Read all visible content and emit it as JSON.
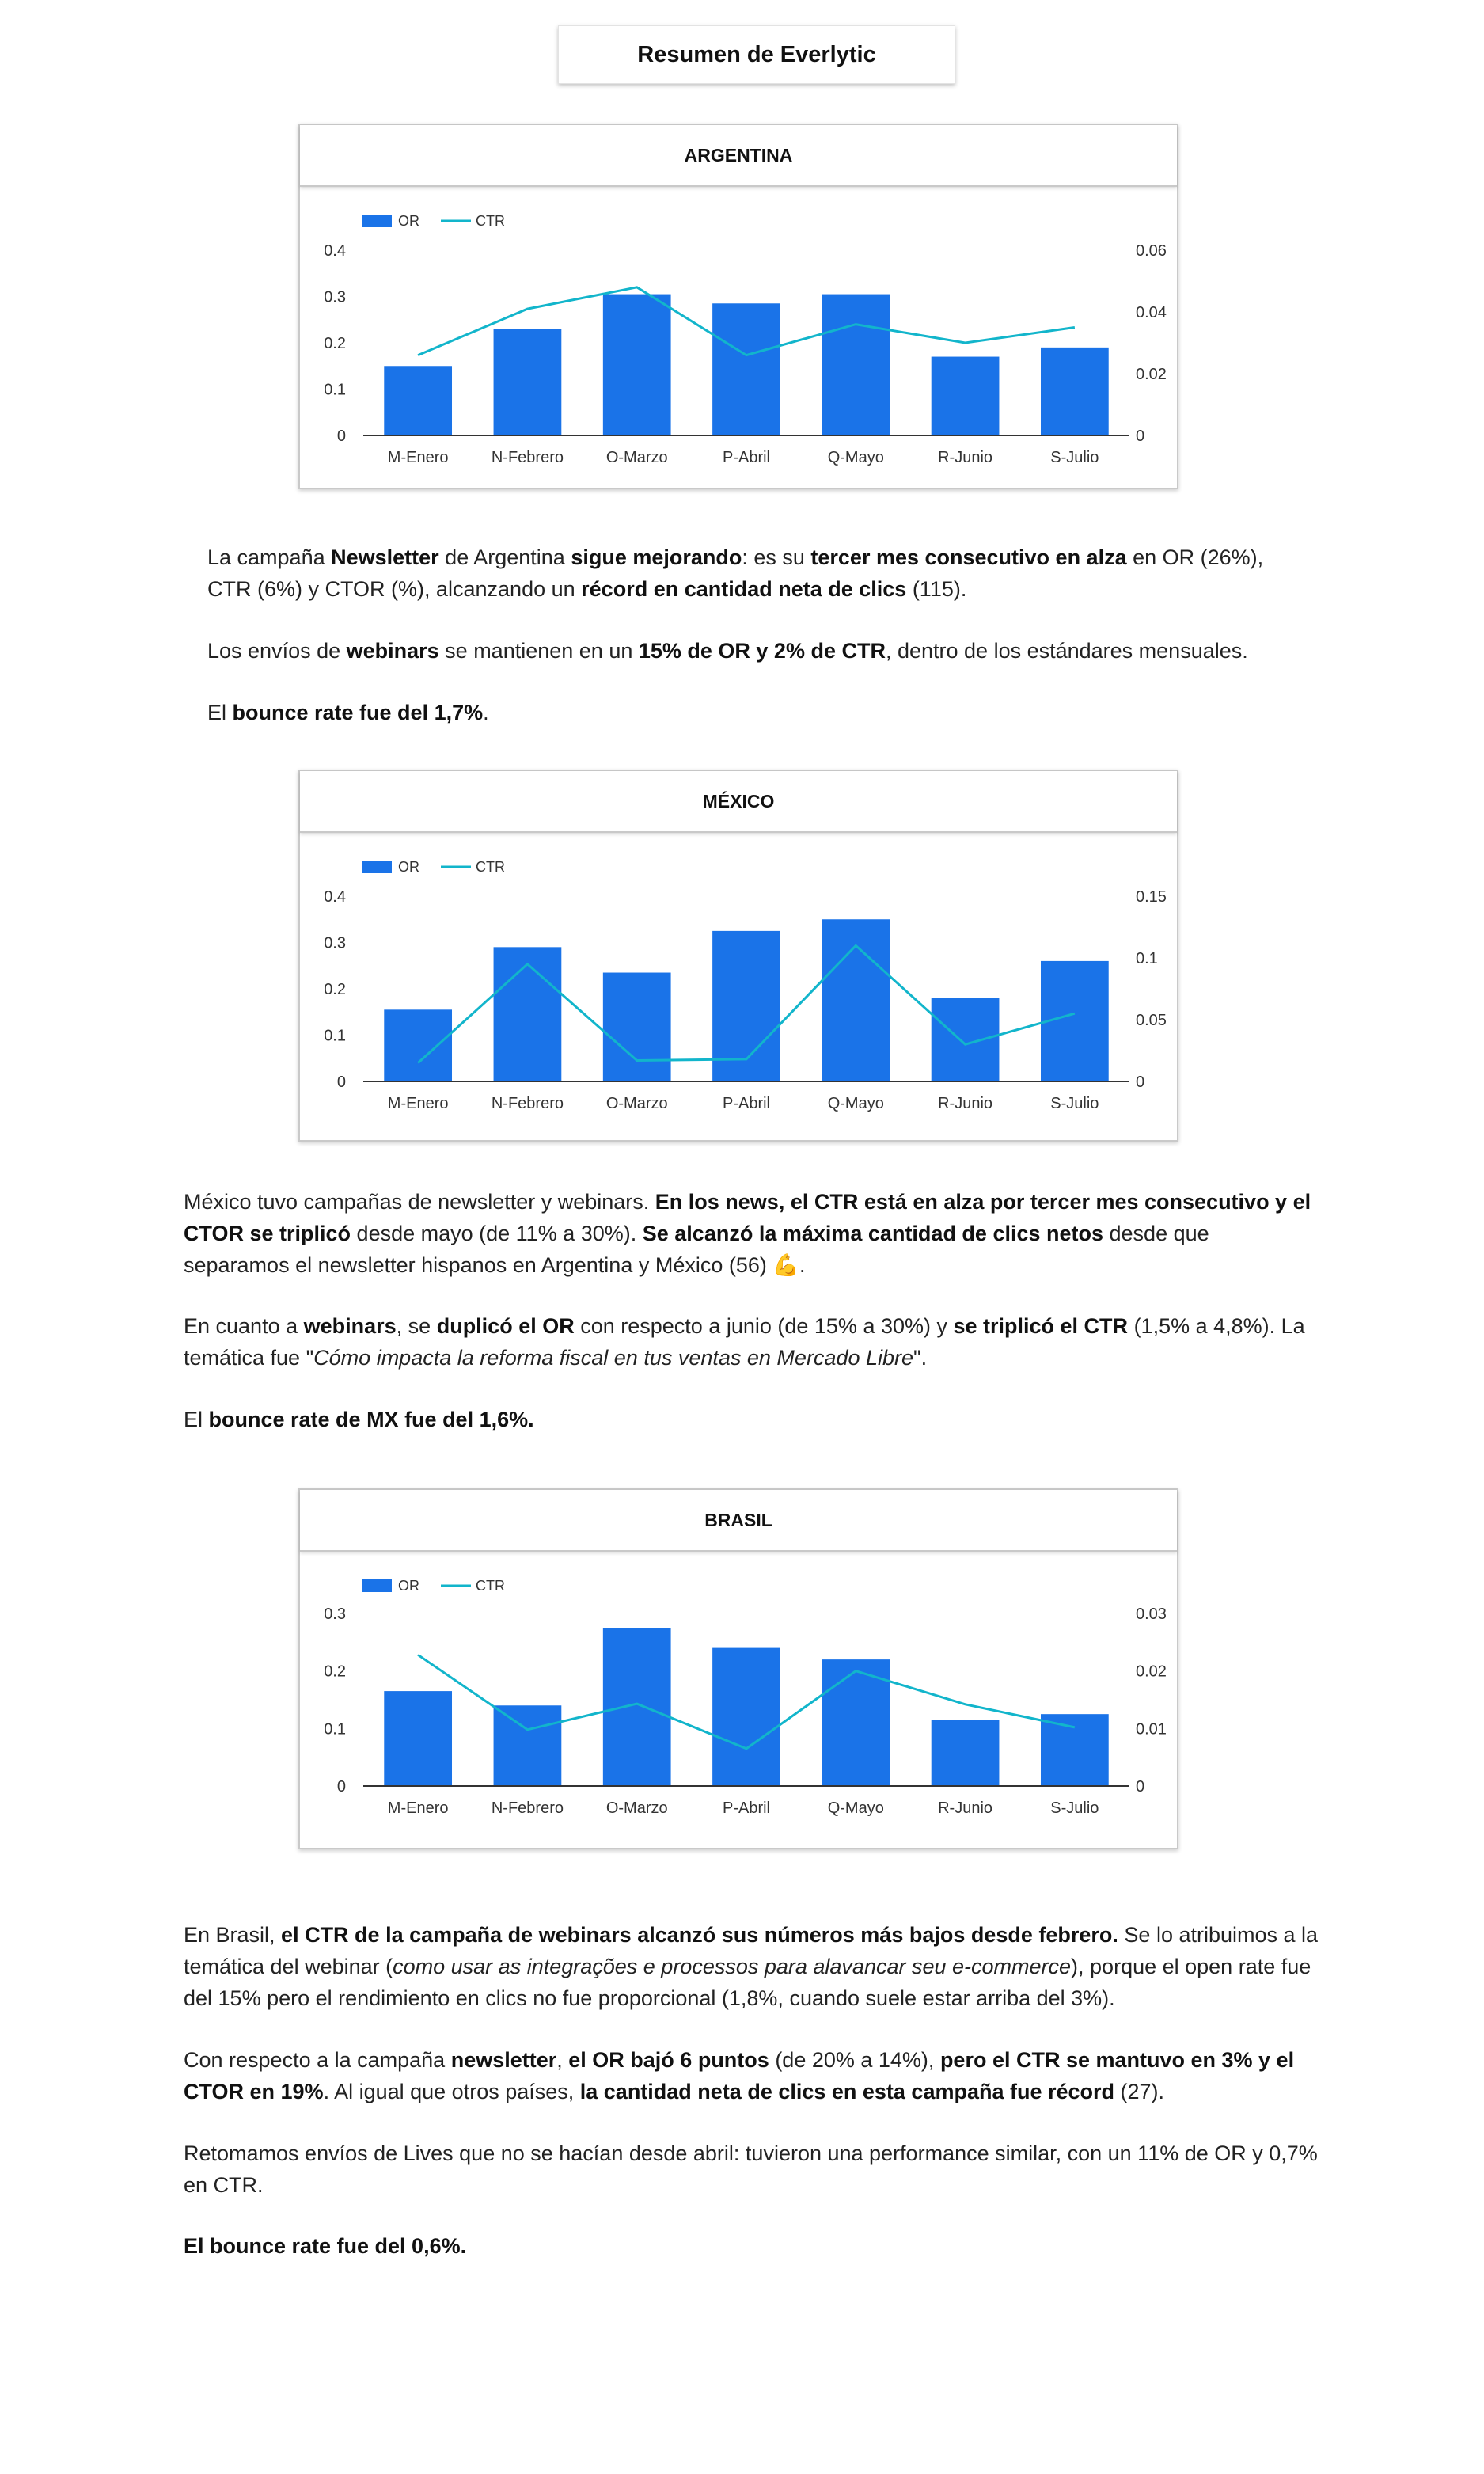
{
  "page_title": "Resumen de Everlytic",
  "charts": [
    {
      "heading": "ARGENTINA",
      "legend": {
        "bar": "OR",
        "line": "CTR"
      },
      "categories": [
        "M-Enero",
        "N-Febrero",
        "O-Marzo",
        "P-Abril",
        "Q-Mayo",
        "R-Junio",
        "S-Julio"
      ],
      "left_ticks": [
        "0",
        "0.1",
        "0.2",
        "0.3",
        "0.4"
      ],
      "right_ticks": [
        "0",
        "0.02",
        "0.04",
        "0.06"
      ]
    },
    {
      "heading": "MÉXICO",
      "legend": {
        "bar": "OR",
        "line": "CTR"
      },
      "categories": [
        "M-Enero",
        "N-Febrero",
        "O-Marzo",
        "P-Abril",
        "Q-Mayo",
        "R-Junio",
        "S-Julio"
      ],
      "left_ticks": [
        "0",
        "0.1",
        "0.2",
        "0.3",
        "0.4"
      ],
      "right_ticks": [
        "0",
        "0.05",
        "0.1",
        "0.15"
      ]
    },
    {
      "heading": "BRASIL",
      "legend": {
        "bar": "OR",
        "line": "CTR"
      },
      "categories": [
        "M-Enero",
        "N-Febrero",
        "O-Marzo",
        "P-Abril",
        "Q-Mayo",
        "R-Junio",
        "S-Julio"
      ],
      "left_ticks": [
        "0",
        "0.1",
        "0.2",
        "0.3"
      ],
      "right_ticks": [
        "0",
        "0.01",
        "0.02",
        "0.03"
      ]
    }
  ],
  "chart_data": [
    {
      "type": "bar",
      "title": "ARGENTINA",
      "categories": [
        "M-Enero",
        "N-Febrero",
        "O-Marzo",
        "P-Abril",
        "Q-Mayo",
        "R-Junio",
        "S-Julio"
      ],
      "series": [
        {
          "name": "OR",
          "axis": "left",
          "type": "bar",
          "values": [
            0.15,
            0.23,
            0.305,
            0.285,
            0.305,
            0.17,
            0.19
          ]
        },
        {
          "name": "CTR",
          "axis": "right",
          "type": "line",
          "values": [
            0.026,
            0.041,
            0.048,
            0.026,
            0.036,
            0.03,
            0.035
          ]
        }
      ],
      "ylim": [
        0,
        0.4
      ],
      "y2lim": [
        0,
        0.06
      ],
      "legend": "top-left",
      "grid": false
    },
    {
      "type": "bar",
      "title": "MÉXICO",
      "categories": [
        "M-Enero",
        "N-Febrero",
        "O-Marzo",
        "P-Abril",
        "Q-Mayo",
        "R-Junio",
        "S-Julio"
      ],
      "series": [
        {
          "name": "OR",
          "axis": "left",
          "type": "bar",
          "values": [
            0.155,
            0.29,
            0.235,
            0.325,
            0.35,
            0.18,
            0.26
          ]
        },
        {
          "name": "CTR",
          "axis": "right",
          "type": "line",
          "values": [
            0.015,
            0.095,
            0.017,
            0.018,
            0.11,
            0.03,
            0.055
          ]
        }
      ],
      "ylim": [
        0,
        0.4
      ],
      "y2lim": [
        0,
        0.15
      ],
      "legend": "top-left",
      "grid": false
    },
    {
      "type": "bar",
      "title": "BRASIL",
      "categories": [
        "M-Enero",
        "N-Febrero",
        "O-Marzo",
        "P-Abril",
        "Q-Mayo",
        "R-Junio",
        "S-Julio"
      ],
      "series": [
        {
          "name": "OR",
          "axis": "left",
          "type": "bar",
          "values": [
            0.165,
            0.14,
            0.275,
            0.24,
            0.22,
            0.115,
            0.125
          ]
        },
        {
          "name": "CTR",
          "axis": "right",
          "type": "line",
          "values": [
            0.0228,
            0.0098,
            0.0143,
            0.0065,
            0.02,
            0.0142,
            0.0102
          ]
        }
      ],
      "ylim": [
        0,
        0.3
      ],
      "y2lim": [
        0,
        0.03
      ],
      "legend": "top-left",
      "grid": false
    }
  ],
  "colors": {
    "bar": "#1a73e8",
    "line": "#12b5cb",
    "axis": "#333333"
  },
  "paragraphs": [
    [
      {
        "t": "La campaña "
      },
      {
        "t": "Newsletter",
        "b": true
      },
      {
        "t": " de Argentina "
      },
      {
        "t": "sigue mejorando",
        "b": true
      },
      {
        "t": ": es su "
      },
      {
        "t": "tercer mes consecutivo en alza",
        "b": true
      },
      {
        "t": " en OR (26%), CTR (6%) y CTOR (%), alcanzando un "
      },
      {
        "t": "récord en cantidad neta de clics",
        "b": true
      },
      {
        "t": " (115)."
      }
    ],
    [
      {
        "t": "Los envíos de "
      },
      {
        "t": "webinars",
        "b": true
      },
      {
        "t": " se mantienen en un "
      },
      {
        "t": "15% de OR y 2% de CTR",
        "b": true
      },
      {
        "t": ", dentro de los estándares mensuales."
      }
    ],
    [
      {
        "t": "El "
      },
      {
        "t": "bounce rate fue del 1,7%",
        "b": true
      },
      {
        "t": "."
      }
    ],
    [
      {
        "t": "México tuvo campañas de newsletter y webinars. "
      },
      {
        "t": "En los news, el CTR está en alza por tercer mes consecutivo y el CTOR se triplicó",
        "b": true
      },
      {
        "t": " desde mayo (de 11% a 30%). "
      },
      {
        "t": "Se alcanzó la máxima cantidad de clics netos",
        "b": true
      },
      {
        "t": " desde que separamos el newsletter hispanos en Argentina y México (56) "
      },
      {
        "t": "💪",
        "emoji": true
      },
      {
        "t": "."
      }
    ],
    [
      {
        "t": "En cuanto a "
      },
      {
        "t": "webinars",
        "b": true
      },
      {
        "t": ", se "
      },
      {
        "t": "duplicó el OR",
        "b": true
      },
      {
        "t": " con respecto a junio (de 15% a 30%) y "
      },
      {
        "t": "se triplicó el CTR",
        "b": true
      },
      {
        "t": " (1,5% a 4,8%). La temática fue \""
      },
      {
        "t": "Cómo impacta la reforma fiscal en tus ventas en Mercado Libre",
        "i": true
      },
      {
        "t": "\"."
      }
    ],
    [
      {
        "t": "El "
      },
      {
        "t": "bounce rate de MX fue del 1,6%.",
        "b": true
      }
    ],
    [
      {
        "t": "En Brasil, "
      },
      {
        "t": "el CTR de la campaña de webinars alcanzó sus números más bajos desde febrero.",
        "b": true
      },
      {
        "t": " Se lo atribuimos a la temática del webinar ("
      },
      {
        "t": "como usar as integrações e processos para alavancar seu e-commerce",
        "i": true
      },
      {
        "t": "), porque el open rate fue del 15% pero el rendimiento en clics no fue proporcional (1,8%, cuando suele estar arriba del 3%)."
      }
    ],
    [
      {
        "t": "Con respecto a la campaña "
      },
      {
        "t": "newsletter",
        "b": true
      },
      {
        "t": ", "
      },
      {
        "t": "el OR bajó 6 puntos",
        "b": true
      },
      {
        "t": " (de 20% a 14%), "
      },
      {
        "t": "pero el CTR se mantuvo en 3% y el CTOR en 19%",
        "b": true
      },
      {
        "t": ". Al igual que otros países, "
      },
      {
        "t": "la cantidad neta de clics en esta campaña fue récord",
        "b": true
      },
      {
        "t": " (27)."
      }
    ],
    [
      {
        "t": "Retomamos envíos de Lives que no se hacían desde abril: tuvieron una performance similar, con un 11% de OR y 0,7% en CTR."
      }
    ],
    [
      {
        "t": "El bounce rate fue del 0,6%.",
        "b": true
      }
    ]
  ]
}
